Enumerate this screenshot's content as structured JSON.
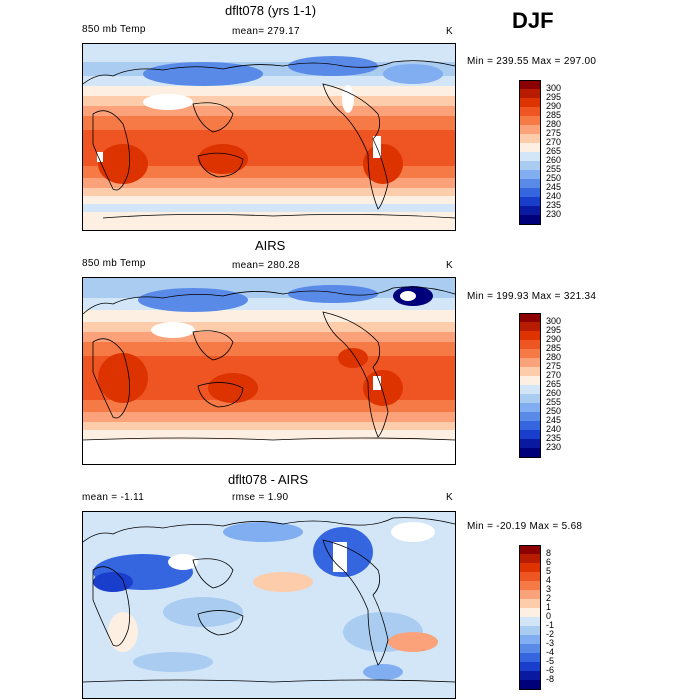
{
  "season": "DJF",
  "units": "K",
  "panels": [
    {
      "title": "dflt078 (yrs 1-1)",
      "left_label": "850 mb Temp",
      "stat": "mean= 279.17",
      "range": "Min = 239.55 Max = 297.00",
      "kind": "abs"
    },
    {
      "title": "AIRS",
      "left_label": "850 mb Temp",
      "stat": "mean= 280.28",
      "range": "Min = 199.93 Max = 321.34",
      "kind": "abs"
    },
    {
      "title": "dflt078 - AIRS",
      "left_label": "mean =   -1.11",
      "stat": "rmse =    1.90",
      "range": "Min = -20.19 Max =    5.68",
      "kind": "diff"
    }
  ],
  "colorbar_abs": {
    "labels": [
      "300",
      "295",
      "290",
      "285",
      "280",
      "275",
      "270",
      "265",
      "260",
      "255",
      "250",
      "245",
      "240",
      "235",
      "230"
    ],
    "colors": [
      "#8b0000",
      "#b71c00",
      "#dd3300",
      "#ee5522",
      "#f57a45",
      "#fba27a",
      "#fdccaa",
      "#fdf0e2",
      "#d2e6f8",
      "#a9ccf0",
      "#80aef0",
      "#5a8ae8",
      "#3566e0",
      "#1a3ecc",
      "#0a1aa0",
      "#00007a"
    ]
  },
  "colorbar_diff": {
    "labels": [
      "8",
      "6",
      "5",
      "4",
      "3",
      "2",
      "1",
      "0",
      "-1",
      "-2",
      "-3",
      "-4",
      "-5",
      "-6",
      "-8"
    ],
    "colors": [
      "#8b0000",
      "#b71c00",
      "#dd3300",
      "#ee5522",
      "#f57a45",
      "#fba27a",
      "#fdccaa",
      "#fdf0e2",
      "#d2e6f8",
      "#a9ccf0",
      "#80aef0",
      "#5a8ae8",
      "#3566e0",
      "#1a3ecc",
      "#0a1aa0",
      "#00007a"
    ]
  }
}
